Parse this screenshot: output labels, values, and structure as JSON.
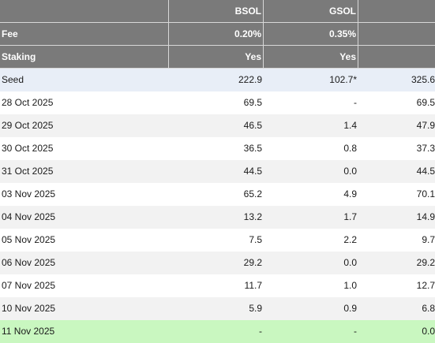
{
  "table": {
    "columns": [
      "",
      "BSOL",
      "GSOL",
      ""
    ],
    "header_rows": [
      {
        "label": "Fee",
        "values": [
          "0.20%",
          "0.35%",
          ""
        ]
      },
      {
        "label": "Staking",
        "values": [
          "Yes",
          "Yes",
          ""
        ]
      }
    ],
    "rows": [
      {
        "date": "Seed",
        "bsol": "222.9",
        "gsol": "102.7*",
        "total": "325.6"
      },
      {
        "date": "28 Oct 2025",
        "bsol": "69.5",
        "gsol": "-",
        "total": "69.5"
      },
      {
        "date": "29 Oct 2025",
        "bsol": "46.5",
        "gsol": "1.4",
        "total": "47.9"
      },
      {
        "date": "30 Oct 2025",
        "bsol": "36.5",
        "gsol": "0.8",
        "total": "37.3"
      },
      {
        "date": "31 Oct 2025",
        "bsol": "44.5",
        "gsol": "0.0",
        "total": "44.5"
      },
      {
        "date": "03 Nov 2025",
        "bsol": "65.2",
        "gsol": "4.9",
        "total": "70.1"
      },
      {
        "date": "04 Nov 2025",
        "bsol": "13.2",
        "gsol": "1.7",
        "total": "14.9"
      },
      {
        "date": "05 Nov 2025",
        "bsol": "7.5",
        "gsol": "2.2",
        "total": "9.7"
      },
      {
        "date": "06 Nov 2025",
        "bsol": "29.2",
        "gsol": "0.0",
        "total": "29.2"
      },
      {
        "date": "07 Nov 2025",
        "bsol": "11.7",
        "gsol": "1.0",
        "total": "12.7"
      },
      {
        "date": "10 Nov 2025",
        "bsol": "5.9",
        "gsol": "0.9",
        "total": "6.8"
      },
      {
        "date": "11 Nov 2025",
        "bsol": "-",
        "gsol": "-",
        "total": "0.0"
      }
    ]
  },
  "colors": {
    "header_bg": "#7a7a7a",
    "seed_bg": "#e8eef7",
    "stripe_bg": "#f2f2f2",
    "highlight_bg": "#c9f7c0"
  }
}
